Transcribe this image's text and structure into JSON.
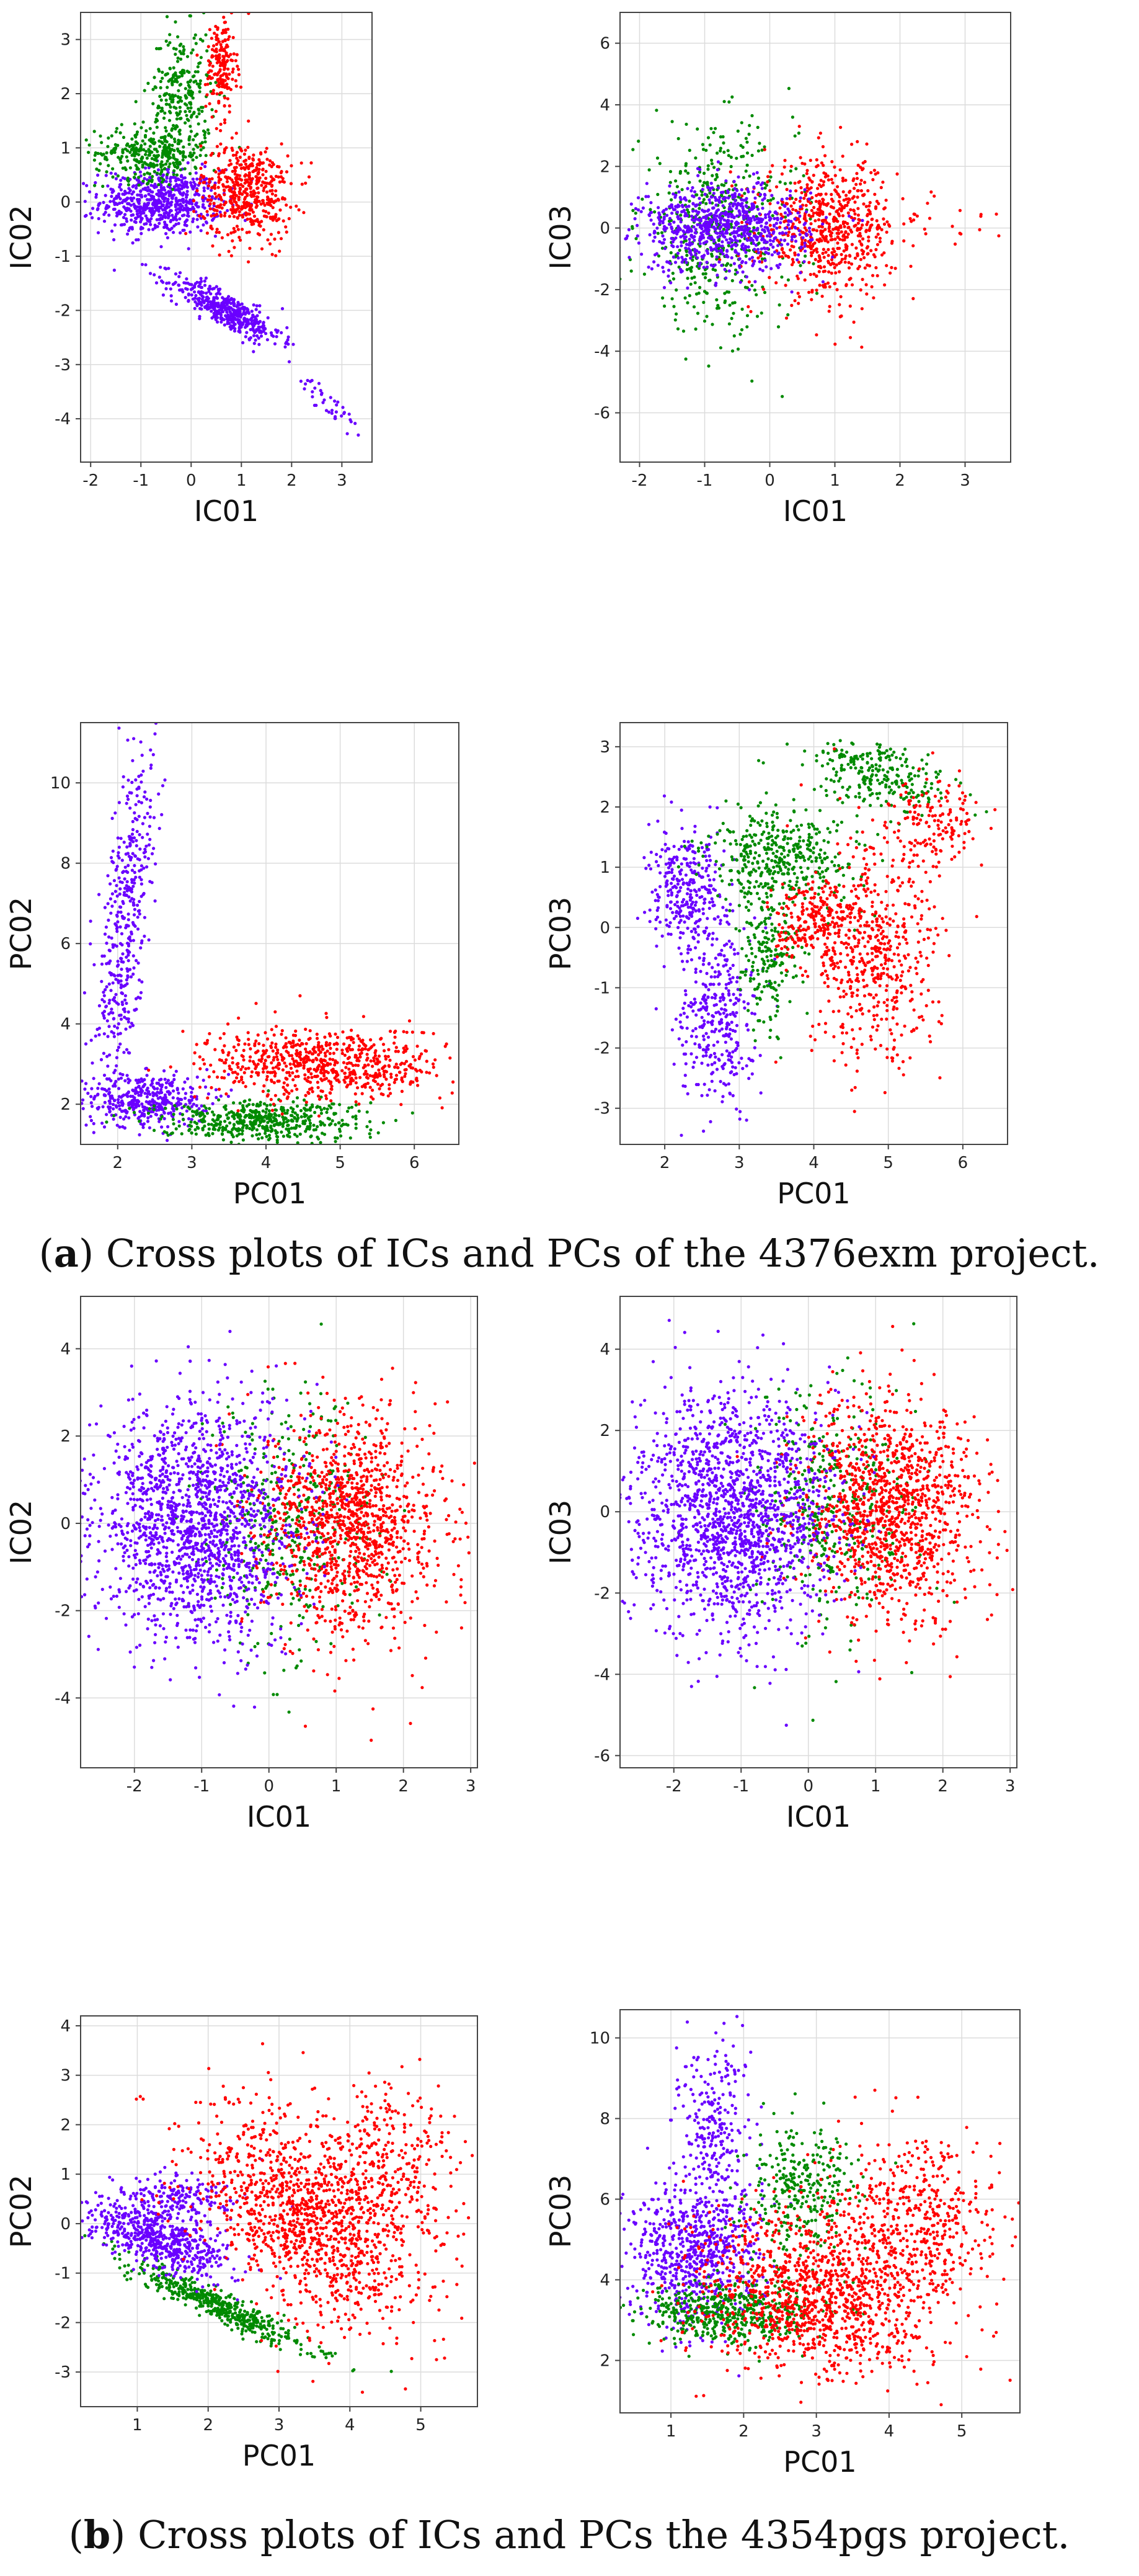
{
  "figure": {
    "caption_a_label": "a",
    "caption_a_text": "Cross plots of ICs and PCs of the 4376exm project.",
    "caption_b_label": "b",
    "caption_b_text": "Cross plots of ICs and PCs the 4354pgs project."
  },
  "colors": {
    "cluster1": "#6a00ff",
    "cluster2": "#008a00",
    "cluster3": "#ff0000"
  },
  "chart_data": [
    {
      "type": "scatter",
      "panel": "a",
      "xlabel": "IC01",
      "ylabel": "IC02",
      "xlim": [
        -2.2,
        3.6
      ],
      "ylim": [
        -4.8,
        3.5
      ],
      "xticks": [
        -2,
        -1,
        0,
        1,
        2,
        3
      ],
      "yticks": [
        -4,
        -3,
        -2,
        -1,
        0,
        1,
        2,
        3
      ],
      "series": [
        {
          "name": "cluster1",
          "color": "#6a00ff",
          "clusters": [
            {
              "cx": -0.6,
              "cy": 0.0,
              "sx": 0.6,
              "sy": 0.3,
              "n": 650
            },
            {
              "cx": 0.7,
              "cy": -2.0,
              "sx": 0.6,
              "sy": 0.15,
              "rot": -0.45,
              "n": 450
            },
            {
              "cx": 2.8,
              "cy": -3.8,
              "sx": 0.45,
              "sy": 0.1,
              "rot": -0.8,
              "n": 40
            }
          ]
        },
        {
          "name": "cluster2",
          "color": "#008a00",
          "clusters": [
            {
              "cx": -0.8,
              "cy": 0.9,
              "sx": 0.55,
              "sy": 0.25,
              "n": 320
            },
            {
              "cx": -0.2,
              "cy": 2.0,
              "sx": 0.3,
              "sy": 0.6,
              "n": 260
            }
          ]
        },
        {
          "name": "cluster3",
          "color": "#ff0000",
          "clusters": [
            {
              "cx": 1.1,
              "cy": 0.2,
              "sx": 0.45,
              "sy": 0.45,
              "n": 500
            },
            {
              "cx": 0.6,
              "cy": 2.5,
              "sx": 0.15,
              "sy": 0.45,
              "n": 180
            }
          ]
        }
      ]
    },
    {
      "type": "scatter",
      "panel": "a",
      "xlabel": "IC01",
      "ylabel": "IC03",
      "xlim": [
        -2.3,
        3.7
      ],
      "ylim": [
        -7.6,
        7.0
      ],
      "xticks": [
        -2,
        -1,
        0,
        1,
        2,
        3
      ],
      "yticks": [
        -6,
        -4,
        -2,
        0,
        2,
        4,
        6
      ],
      "series": [
        {
          "name": "cluster2",
          "color": "#008a00",
          "clusters": [
            {
              "cx": -0.8,
              "cy": 0.0,
              "sx": 0.6,
              "sy": 1.6,
              "n": 500
            }
          ]
        },
        {
          "name": "cluster3",
          "color": "#ff0000",
          "clusters": [
            {
              "cx": 0.9,
              "cy": 0.0,
              "sx": 0.5,
              "sy": 1.1,
              "n": 650
            },
            {
              "cx": 2.5,
              "cy": 0.2,
              "sx": 0.5,
              "sy": 0.4,
              "n": 25
            }
          ]
        },
        {
          "name": "cluster1",
          "color": "#6a00ff",
          "clusters": [
            {
              "cx": -0.7,
              "cy": 0.0,
              "sx": 0.65,
              "sy": 0.7,
              "n": 800
            }
          ]
        }
      ]
    },
    {
      "type": "scatter",
      "panel": "a",
      "xlabel": "PC01",
      "ylabel": "PC02",
      "xlim": [
        1.5,
        6.6
      ],
      "ylim": [
        1.0,
        11.5
      ],
      "xticks": [
        2,
        3,
        4,
        5,
        6
      ],
      "yticks": [
        2,
        4,
        6,
        8,
        10
      ],
      "series": [
        {
          "name": "cluster1",
          "color": "#6a00ff",
          "clusters": [
            {
              "cx": 2.1,
              "cy": 6.5,
              "sx": 0.15,
              "sy": 2.4,
              "rot": -0.06,
              "n": 450
            },
            {
              "cx": 2.4,
              "cy": 2.1,
              "sx": 0.4,
              "sy": 0.35,
              "n": 400
            }
          ]
        },
        {
          "name": "cluster2",
          "color": "#008a00",
          "clusters": [
            {
              "cx": 3.9,
              "cy": 1.6,
              "sx": 0.7,
              "sy": 0.25,
              "n": 500
            }
          ]
        },
        {
          "name": "cluster3",
          "color": "#ff0000",
          "clusters": [
            {
              "cx": 4.8,
              "cy": 3.0,
              "sx": 0.8,
              "sy": 0.45,
              "n": 700
            }
          ]
        }
      ]
    },
    {
      "type": "scatter",
      "panel": "a",
      "xlabel": "PC01",
      "ylabel": "PC03",
      "xlim": [
        1.4,
        6.6
      ],
      "ylim": [
        -3.6,
        3.4
      ],
      "xticks": [
        2,
        3,
        4,
        5,
        6
      ],
      "yticks": [
        -3,
        -2,
        -1,
        0,
        1,
        2,
        3
      ],
      "series": [
        {
          "name": "cluster1",
          "color": "#6a00ff",
          "clusters": [
            {
              "cx": 2.3,
              "cy": 0.6,
              "sx": 0.25,
              "sy": 0.5,
              "n": 300
            },
            {
              "cx": 2.7,
              "cy": -1.4,
              "sx": 0.25,
              "sy": 0.8,
              "n": 350
            }
          ]
        },
        {
          "name": "cluster2",
          "color": "#008a00",
          "clusters": [
            {
              "cx": 3.6,
              "cy": 1.2,
              "sx": 0.5,
              "sy": 0.4,
              "n": 400
            },
            {
              "cx": 4.9,
              "cy": 2.5,
              "sx": 0.5,
              "sy": 0.25,
              "rot": -0.4,
              "n": 250
            },
            {
              "cx": 3.4,
              "cy": -0.4,
              "sx": 0.2,
              "sy": 0.6,
              "n": 200
            }
          ]
        },
        {
          "name": "cluster3",
          "color": "#ff0000",
          "clusters": [
            {
              "cx": 4.8,
              "cy": -0.5,
              "sx": 0.45,
              "sy": 0.9,
              "n": 550
            },
            {
              "cx": 4.0,
              "cy": 0.1,
              "sx": 0.25,
              "sy": 0.3,
              "n": 200
            },
            {
              "cx": 5.6,
              "cy": 1.8,
              "sx": 0.3,
              "sy": 0.35,
              "n": 150
            }
          ]
        }
      ]
    },
    {
      "type": "scatter",
      "panel": "b",
      "xlabel": "IC01",
      "ylabel": "IC02",
      "xlim": [
        -2.8,
        3.1
      ],
      "ylim": [
        -5.6,
        5.2
      ],
      "xticks": [
        -2,
        -1,
        0,
        1,
        2,
        3
      ],
      "yticks": [
        -4,
        -2,
        0,
        2,
        4
      ],
      "series": [
        {
          "name": "cluster2",
          "color": "#008a00",
          "clusters": [
            {
              "cx": 0.3,
              "cy": 0.0,
              "sx": 0.6,
              "sy": 1.4,
              "n": 400
            }
          ]
        },
        {
          "name": "cluster3",
          "color": "#ff0000",
          "clusters": [
            {
              "cx": 1.25,
              "cy": 0.0,
              "sx": 0.65,
              "sy": 1.25,
              "n": 1200
            }
          ]
        },
        {
          "name": "cluster1",
          "color": "#6a00ff",
          "clusters": [
            {
              "cx": -1.1,
              "cy": 0.0,
              "sx": 0.75,
              "sy": 1.35,
              "n": 1600
            }
          ]
        }
      ]
    },
    {
      "type": "scatter",
      "panel": "b",
      "xlabel": "IC01",
      "ylabel": "IC03",
      "xlim": [
        -2.8,
        3.1
      ],
      "ylim": [
        -6.3,
        5.3
      ],
      "xticks": [
        -2,
        -1,
        0,
        1,
        2,
        3
      ],
      "yticks": [
        -6,
        -4,
        -2,
        0,
        2,
        4
      ],
      "series": [
        {
          "name": "cluster2",
          "color": "#008a00",
          "clusters": [
            {
              "cx": 0.3,
              "cy": 0.0,
              "sx": 0.6,
              "sy": 1.5,
              "n": 400
            }
          ]
        },
        {
          "name": "cluster3",
          "color": "#ff0000",
          "clusters": [
            {
              "cx": 1.25,
              "cy": 0.0,
              "sx": 0.65,
              "sy": 1.35,
              "n": 1200
            }
          ]
        },
        {
          "name": "cluster1",
          "color": "#6a00ff",
          "clusters": [
            {
              "cx": -1.1,
              "cy": 0.0,
              "sx": 0.75,
              "sy": 1.45,
              "n": 1600
            }
          ]
        }
      ]
    },
    {
      "type": "scatter",
      "panel": "b",
      "xlabel": "PC01",
      "ylabel": "PC02",
      "xlim": [
        0.2,
        5.8
      ],
      "ylim": [
        -3.7,
        4.2
      ],
      "xticks": [
        1,
        2,
        3,
        4,
        5
      ],
      "yticks": [
        -3,
        -2,
        -1,
        0,
        1,
        2,
        3,
        4
      ],
      "series": [
        {
          "name": "cluster2",
          "color": "#008a00",
          "clusters": [
            {
              "cx": 2.2,
              "cy": -1.7,
              "sx": 0.8,
              "sy": 0.12,
              "rot": -0.6,
              "n": 500
            }
          ]
        },
        {
          "name": "cluster1",
          "color": "#6a00ff",
          "clusters": [
            {
              "cx": 1.3,
              "cy": -0.3,
              "sx": 0.55,
              "sy": 0.25,
              "rot": -0.55,
              "n": 600
            },
            {
              "cx": 1.5,
              "cy": 0.5,
              "sx": 0.4,
              "sy": 0.25,
              "n": 200
            }
          ]
        },
        {
          "name": "cluster3",
          "color": "#ff0000",
          "clusters": [
            {
              "cx": 3.3,
              "cy": 0.1,
              "sx": 0.6,
              "sy": 1.2,
              "rot": 0.45,
              "n": 1100
            },
            {
              "cx": 4.5,
              "cy": 0.8,
              "sx": 0.5,
              "sy": 1.0,
              "n": 400
            }
          ]
        }
      ]
    },
    {
      "type": "scatter",
      "panel": "b",
      "xlabel": "PC01",
      "ylabel": "PC03",
      "xlim": [
        0.3,
        5.8
      ],
      "ylim": [
        0.7,
        10.7
      ],
      "xticks": [
        1,
        2,
        3,
        4,
        5
      ],
      "yticks": [
        2,
        4,
        6,
        8,
        10
      ],
      "series": [
        {
          "name": "cluster1",
          "color": "#6a00ff",
          "clusters": [
            {
              "cx": 1.3,
              "cy": 4.6,
              "sx": 0.45,
              "sy": 0.9,
              "n": 700
            },
            {
              "cx": 1.6,
              "cy": 7.8,
              "sx": 0.25,
              "sy": 1.1,
              "n": 250
            }
          ]
        },
        {
          "name": "cluster2",
          "color": "#008a00",
          "clusters": [
            {
              "cx": 1.8,
              "cy": 3.2,
              "sx": 0.6,
              "sy": 0.4,
              "n": 500
            },
            {
              "cx": 2.8,
              "cy": 6.2,
              "sx": 0.35,
              "sy": 0.8,
              "n": 300
            }
          ]
        },
        {
          "name": "cluster3",
          "color": "#ff0000",
          "clusters": [
            {
              "cx": 3.0,
              "cy": 3.6,
              "sx": 0.8,
              "sy": 1.0,
              "rot": 0.35,
              "n": 1100
            },
            {
              "cx": 4.3,
              "cy": 5.5,
              "sx": 0.55,
              "sy": 1.0,
              "n": 500
            }
          ]
        }
      ]
    }
  ]
}
